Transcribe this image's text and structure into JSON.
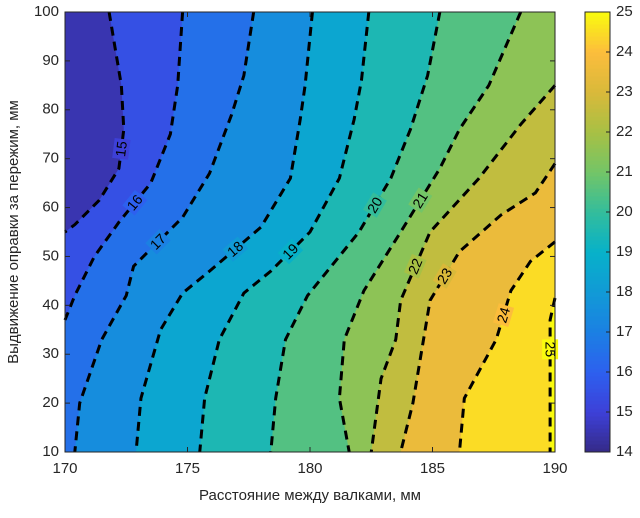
{
  "chart_data": {
    "type": "contour",
    "xlabel": "Расстояние между валками, мм",
    "ylabel": "Выдвижение оправки за пережим, мм",
    "xlim": [
      170,
      190
    ],
    "ylim": [
      10,
      100
    ],
    "xticks": [
      170,
      175,
      180,
      185,
      190
    ],
    "yticks": [
      10,
      20,
      30,
      40,
      50,
      60,
      70,
      80,
      90,
      100
    ],
    "clim": [
      14,
      25
    ],
    "cticks": [
      14,
      15,
      16,
      17,
      18,
      19,
      20,
      21,
      22,
      23,
      24,
      25
    ],
    "colormap": [
      "#352a87",
      "#3d40d8",
      "#2d60ef",
      "#1b80e3",
      "#119ad6",
      "#07b1c9",
      "#33bd9c",
      "#73c567",
      "#a8c044",
      "#d9b93a",
      "#fcbd3c",
      "#f9fb0e"
    ],
    "line_color": "#000000",
    "levels": [
      {
        "level": 15,
        "x": [
          171.8,
          172.3,
          172.4,
          172.2,
          171.4,
          170.4,
          170
        ],
        "y": [
          100,
          85,
          76,
          68,
          61.5,
          56.5,
          55
        ]
      },
      {
        "level": 16,
        "x": [
          174.8,
          174.6,
          174.3,
          173.5,
          172.2,
          171.2,
          170.4,
          170
        ],
        "y": [
          100,
          85,
          75,
          65,
          57,
          50,
          42,
          37
        ]
      },
      {
        "level": 17,
        "x": [
          177.7,
          177.3,
          176.8,
          175.9,
          174.8,
          172.8,
          172.5,
          171.5,
          170.6,
          170.4
        ],
        "y": [
          100,
          87,
          79,
          67,
          58,
          48,
          42,
          33,
          20,
          10
        ]
      },
      {
        "level": 18,
        "x": [
          180.1,
          179.8,
          179.6,
          179.2,
          178,
          175.9,
          174.8,
          173.9,
          173.1,
          172.9
        ],
        "y": [
          100,
          85,
          78,
          66,
          56,
          47,
          42.5,
          35,
          21,
          10
        ]
      },
      {
        "level": 19,
        "x": [
          182.4,
          182.1,
          181.8,
          181.2,
          180,
          178.4,
          177.3,
          176.3,
          175.7,
          175.5
        ],
        "y": [
          100,
          86,
          78,
          66,
          55,
          47,
          42.5,
          33,
          21,
          10
        ]
      },
      {
        "level": 20,
        "x": [
          185.3,
          184.8,
          184.1,
          183.3,
          182,
          179.9,
          179,
          178.6,
          178.4
        ],
        "y": [
          100,
          87,
          76,
          66,
          55,
          42,
          33,
          21,
          10
        ]
      },
      {
        "level": 21,
        "x": [
          188.6,
          187.3,
          186.1,
          185.3,
          183.7,
          182.2,
          181.4,
          181.2,
          181.6
        ],
        "y": [
          100,
          85,
          76,
          68,
          55,
          43,
          33,
          21,
          10
        ]
      },
      {
        "level": 22,
        "x": [
          190,
          188.6,
          186.9,
          184.9,
          183.7,
          183.5,
          182.9,
          182.5
        ],
        "y": [
          85,
          77,
          66,
          55,
          41,
          33,
          25,
          10
        ]
      },
      {
        "level": 23,
        "x": [
          190,
          189.2,
          187.8,
          186.1,
          184.9,
          184.5,
          184.2,
          183.7
        ],
        "y": [
          69,
          63,
          58.5,
          51,
          41,
          29,
          20,
          10
        ]
      },
      {
        "level": 24,
        "x": [
          190,
          189,
          188.2,
          187.6,
          186.3,
          186.1
        ],
        "y": [
          53,
          49,
          43,
          33,
          21,
          10
        ]
      },
      {
        "level": 25,
        "x": [
          190,
          189.8,
          189.8,
          189.8
        ],
        "y": [
          41.5,
          37,
          25,
          10
        ]
      }
    ]
  }
}
